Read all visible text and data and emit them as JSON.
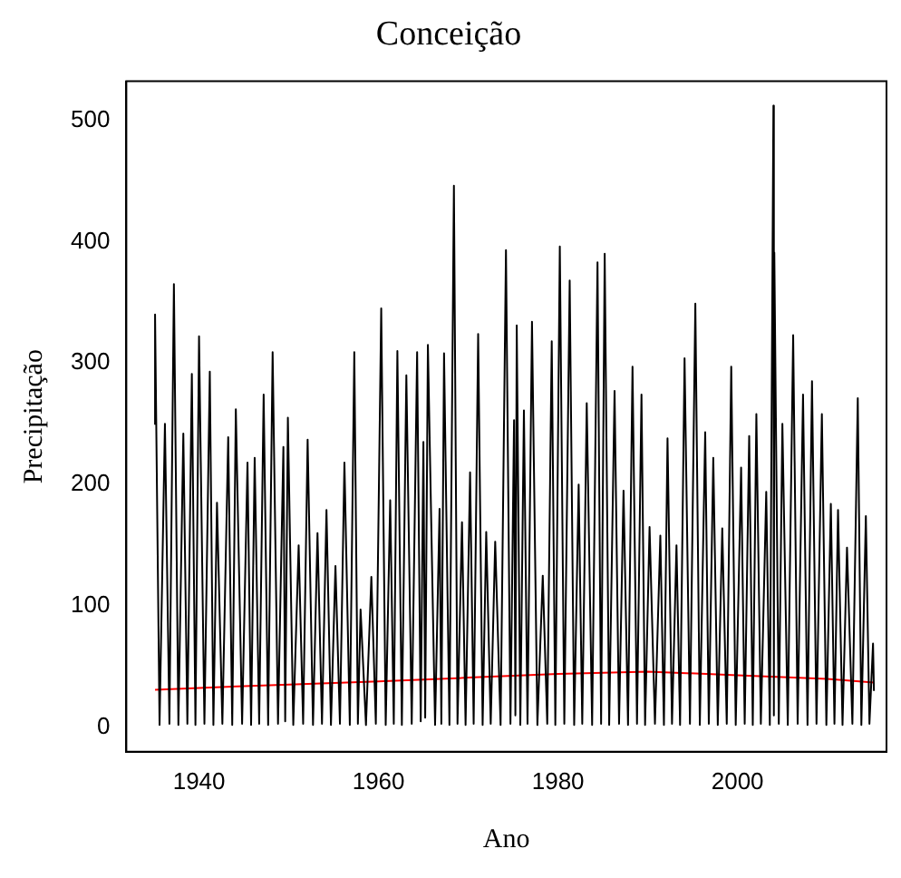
{
  "chart_data": {
    "type": "line",
    "title": "Conceição",
    "xlabel": "Ano",
    "ylabel": "Precipitação",
    "xlim": [
      1931.9,
      2016.6
    ],
    "xticks": [
      1940,
      1960,
      1980,
      2000
    ],
    "ylim": [
      -20,
      532
    ],
    "yticks": [
      0,
      100,
      200,
      300,
      400,
      500
    ],
    "grid": false,
    "legend": false,
    "marker": "none",
    "line_style": "solid",
    "series": [
      {
        "color": "#000000",
        "x": [
          1935.0,
          1935.1,
          1935.6,
          1936.2,
          1936.7,
          1937.2,
          1937.7,
          1938.25,
          1938.7,
          1939.2,
          1939.6,
          1940.0,
          1940.6,
          1941.2,
          1941.6,
          1942.0,
          1942.6,
          1943.25,
          1943.7,
          1944.1,
          1944.8,
          1945.4,
          1945.8,
          1946.2,
          1946.7,
          1947.2,
          1947.7,
          1948.2,
          1948.8,
          1949.4,
          1949.6,
          1949.9,
          1950.5,
          1951.1,
          1951.6,
          1952.1,
          1952.7,
          1953.2,
          1953.7,
          1954.2,
          1954.7,
          1955.2,
          1955.7,
          1956.2,
          1956.8,
          1957.3,
          1957.7,
          1958.0,
          1958.6,
          1959.2,
          1959.7,
          1960.3,
          1960.8,
          1961.3,
          1961.7,
          1962.1,
          1962.6,
          1963.1,
          1963.7,
          1964.3,
          1964.7,
          1965.0,
          1965.2,
          1965.5,
          1966.3,
          1966.8,
          1967.0,
          1967.3,
          1967.9,
          1968.4,
          1968.8,
          1969.3,
          1969.7,
          1970.2,
          1970.6,
          1971.1,
          1971.6,
          1972.0,
          1972.5,
          1973.0,
          1973.6,
          1974.2,
          1974.7,
          1975.1,
          1975.25,
          1975.4,
          1975.8,
          1976.2,
          1976.6,
          1977.1,
          1977.7,
          1978.3,
          1978.8,
          1979.3,
          1979.7,
          1980.2,
          1980.7,
          1981.3,
          1981.8,
          1982.3,
          1982.7,
          1983.2,
          1983.8,
          1984.4,
          1984.8,
          1985.2,
          1985.7,
          1986.3,
          1986.8,
          1987.3,
          1987.8,
          1988.3,
          1988.8,
          1989.3,
          1989.7,
          1990.2,
          1990.8,
          1991.4,
          1991.8,
          1992.2,
          1992.7,
          1993.2,
          1993.6,
          1994.1,
          1994.7,
          1995.3,
          1995.8,
          1996.4,
          1996.8,
          1997.3,
          1997.8,
          1998.3,
          1998.8,
          1999.3,
          1999.8,
          2000.4,
          2000.8,
          2001.3,
          2001.7,
          2002.1,
          2002.6,
          2003.2,
          2003.6,
          2004.0,
          2004.05,
          2004.1,
          2004.6,
          2005.0,
          2005.6,
          2006.2,
          2006.7,
          2007.3,
          2007.8,
          2008.3,
          2008.8,
          2009.4,
          2009.9,
          2010.4,
          2010.8,
          2011.2,
          2011.7,
          2012.2,
          2012.8,
          2013.4,
          2013.8,
          2014.3,
          2014.7,
          2015.1,
          2015.2
        ],
        "values": [
          250,
          340,
          2,
          250,
          3,
          365,
          2,
          242,
          3,
          291,
          2,
          322,
          3,
          293,
          2,
          185,
          3,
          239,
          2,
          262,
          3,
          218,
          2,
          222,
          3,
          274,
          2,
          309,
          3,
          231,
          5,
          255,
          2,
          150,
          3,
          237,
          2,
          160,
          3,
          179,
          2,
          133,
          3,
          218,
          2,
          309,
          3,
          97,
          2,
          124,
          3,
          345,
          2,
          187,
          3,
          310,
          2,
          290,
          3,
          309,
          5,
          235,
          8,
          315,
          2,
          180,
          3,
          308,
          2,
          446,
          3,
          169,
          2,
          210,
          3,
          324,
          2,
          161,
          3,
          153,
          2,
          393,
          3,
          253,
          10,
          331,
          2,
          261,
          3,
          334,
          2,
          125,
          3,
          318,
          2,
          396,
          3,
          368,
          2,
          200,
          3,
          267,
          2,
          383,
          3,
          390,
          2,
          277,
          3,
          195,
          2,
          297,
          3,
          274,
          2,
          165,
          3,
          158,
          2,
          238,
          3,
          150,
          2,
          304,
          3,
          349,
          2,
          243,
          3,
          222,
          2,
          164,
          3,
          297,
          2,
          214,
          3,
          240,
          2,
          258,
          3,
          194,
          2,
          512,
          10,
          391,
          3,
          250,
          2,
          323,
          3,
          274,
          2,
          285,
          3,
          258,
          2,
          184,
          3,
          179,
          2,
          148,
          3,
          271,
          2,
          174,
          3,
          69,
          30
        ]
      },
      {
        "color": "#ff0000",
        "x": [
          1935.1,
          1945,
          1960,
          1970,
          1980,
          1990,
          2000,
          2010,
          2015.2
        ],
        "values": [
          31,
          34,
          38,
          41,
          44,
          46,
          43,
          40,
          37
        ]
      }
    ]
  }
}
